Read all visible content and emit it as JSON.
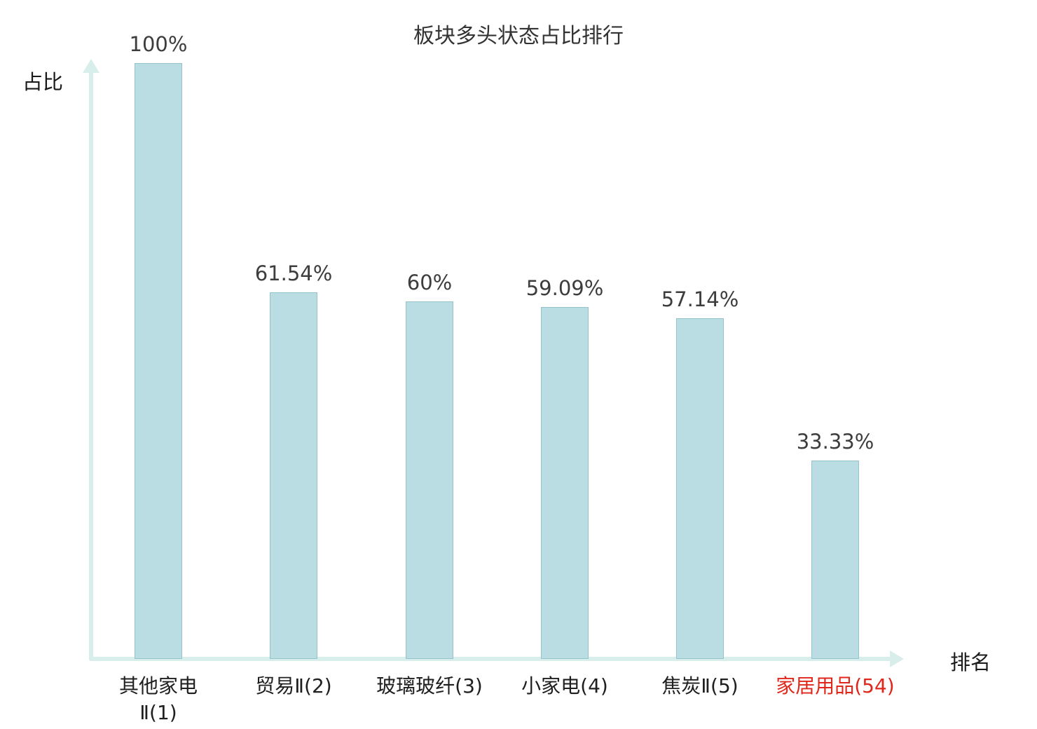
{
  "chart_data": {
    "type": "bar",
    "title": "板块多头状态占比排行",
    "xlabel": "排名",
    "ylabel": "占比",
    "ylim": [
      0,
      100
    ],
    "grid": false,
    "legend": "none",
    "categories": [
      "其他家电Ⅱ(1)",
      "贸易Ⅱ(2)",
      "玻璃玻纤(3)",
      "小家电(4)",
      "焦炭Ⅱ(5)",
      "家居用品(54)"
    ],
    "values": [
      100,
      61.54,
      60,
      59.09,
      57.14,
      33.33
    ],
    "value_labels": [
      "100%",
      "61.54%",
      "60%",
      "59.09%",
      "57.14%",
      "33.33%"
    ],
    "category_label_lines": [
      [
        "其他家电",
        "Ⅱ(1)"
      ],
      [
        "贸易Ⅱ(2)"
      ],
      [
        "玻璃玻纤(3)"
      ],
      [
        "小家电(4)"
      ],
      [
        "焦炭Ⅱ(5)"
      ],
      [
        "家居用品(54)"
      ]
    ],
    "highlight_index": 5,
    "colors": {
      "bar_fill": "#b9dde2",
      "bar_border": "#94c3cb",
      "axis": "#d8eeea",
      "title_text": "#333333",
      "value_text": "#3d3d3d",
      "category_text": "#1f1f1f",
      "highlight_text": "#e0271c"
    }
  }
}
